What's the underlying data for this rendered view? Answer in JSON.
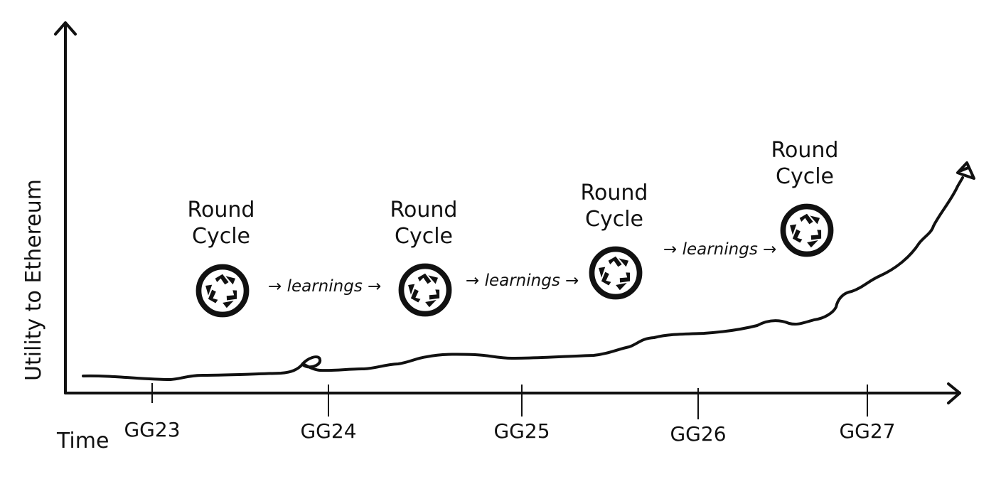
{
  "axis": {
    "y_label": "Utility to Ethereum",
    "x_label": "Time"
  },
  "ticks": [
    "GG23",
    "GG24",
    "GG25",
    "GG26",
    "GG27"
  ],
  "rounds": [
    {
      "line1": "Round",
      "line2": "Cycle"
    },
    {
      "line1": "Round",
      "line2": "Cycle"
    },
    {
      "line1": "Round",
      "line2": "Cycle"
    },
    {
      "line1": "Round",
      "line2": "Cycle"
    }
  ],
  "arrows": [
    {
      "pre": "→",
      "text": "learnings",
      "post": "→"
    },
    {
      "pre": "→",
      "text": "learnings",
      "post": "→"
    },
    {
      "pre": "→",
      "text": "learnings",
      "post": "→"
    }
  ],
  "icons": [
    "recycle-icon",
    "recycle-icon",
    "recycle-icon",
    "recycle-icon"
  ],
  "colors": {
    "ink": "#111111",
    "background": "#ffffff"
  }
}
